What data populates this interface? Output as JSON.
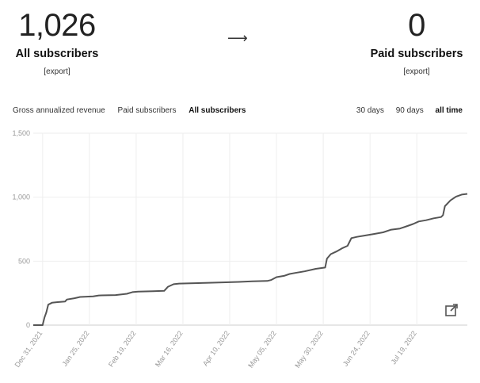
{
  "stats": {
    "all": {
      "value": "1,026",
      "label": "All subscribers",
      "export": "[export]"
    },
    "arrow": "⟶",
    "paid": {
      "value": "0",
      "label": "Paid subscribers",
      "export": "[export]"
    }
  },
  "tabs": [
    "Gross annualized revenue",
    "Paid subscribers",
    "All subscribers"
  ],
  "active_tab": "All subscribers",
  "ranges": [
    "30 days",
    "90 days",
    "all time"
  ],
  "active_range": "all time",
  "colors": {
    "line": "#555555",
    "grid": "#eeeeee",
    "axis": "#cccccc"
  },
  "icons": {
    "popout": "external-link-icon"
  },
  "chart_data": {
    "type": "line",
    "ylim": [
      0,
      1500
    ],
    "yticks": [
      "0",
      "500",
      "1,000",
      "1,500"
    ],
    "xlim": [
      "2021-12-31",
      "2022-08-12"
    ],
    "xtick_labels": [
      "Dec 31, 2021",
      "Jan 25, 2022",
      "Feb 19, 2022",
      "Mar 16, 2022",
      "Apr 10, 2022",
      "May 05, 2022",
      "May 30, 2022",
      "Jun 24, 2022",
      "Jul 19, 2022"
    ],
    "xtick_dates": [
      "2021-12-31",
      "2022-01-25",
      "2022-02-19",
      "2022-03-16",
      "2022-04-10",
      "2022-05-05",
      "2022-05-30",
      "2022-06-24",
      "2022-07-19"
    ],
    "series": [
      {
        "points": [
          [
            "2021-12-26",
            0
          ],
          [
            "2021-12-31",
            0
          ],
          [
            "2022-01-01",
            60
          ],
          [
            "2022-01-02",
            100
          ],
          [
            "2022-01-03",
            160
          ],
          [
            "2022-01-05",
            175
          ],
          [
            "2022-01-08",
            180
          ],
          [
            "2022-01-12",
            185
          ],
          [
            "2022-01-13",
            200
          ],
          [
            "2022-01-17",
            210
          ],
          [
            "2022-01-20",
            220
          ],
          [
            "2022-01-27",
            225
          ],
          [
            "2022-01-30",
            232
          ],
          [
            "2022-02-08",
            235
          ],
          [
            "2022-02-14",
            245
          ],
          [
            "2022-02-17",
            258
          ],
          [
            "2022-02-20",
            262
          ],
          [
            "2022-02-28",
            265
          ],
          [
            "2022-03-06",
            268
          ],
          [
            "2022-03-08",
            300
          ],
          [
            "2022-03-11",
            320
          ],
          [
            "2022-03-14",
            325
          ],
          [
            "2022-03-28",
            330
          ],
          [
            "2022-04-08",
            335
          ],
          [
            "2022-04-15",
            338
          ],
          [
            "2022-04-22",
            342
          ],
          [
            "2022-04-30",
            345
          ],
          [
            "2022-05-02",
            352
          ],
          [
            "2022-05-05",
            375
          ],
          [
            "2022-05-09",
            385
          ],
          [
            "2022-05-12",
            400
          ],
          [
            "2022-05-15",
            408
          ],
          [
            "2022-05-20",
            420
          ],
          [
            "2022-05-26",
            440
          ],
          [
            "2022-05-31",
            450
          ],
          [
            "2022-06-01",
            520
          ],
          [
            "2022-06-03",
            555
          ],
          [
            "2022-06-06",
            575
          ],
          [
            "2022-06-09",
            600
          ],
          [
            "2022-06-12",
            620
          ],
          [
            "2022-06-14",
            680
          ],
          [
            "2022-06-17",
            690
          ],
          [
            "2022-06-21",
            700
          ],
          [
            "2022-06-26",
            712
          ],
          [
            "2022-07-01",
            725
          ],
          [
            "2022-07-05",
            745
          ],
          [
            "2022-07-10",
            755
          ],
          [
            "2022-07-14",
            775
          ],
          [
            "2022-07-17",
            790
          ],
          [
            "2022-07-20",
            810
          ],
          [
            "2022-07-24",
            820
          ],
          [
            "2022-07-28",
            835
          ],
          [
            "2022-08-01",
            845
          ],
          [
            "2022-08-02",
            860
          ],
          [
            "2022-08-03",
            930
          ],
          [
            "2022-08-06",
            975
          ],
          [
            "2022-08-09",
            1005
          ],
          [
            "2022-08-12",
            1020
          ],
          [
            "2022-08-15",
            1026
          ]
        ]
      }
    ]
  }
}
